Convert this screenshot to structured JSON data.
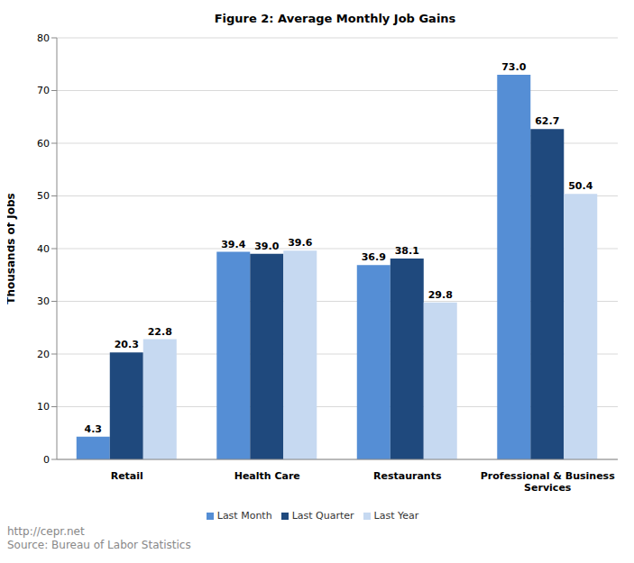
{
  "chart_data": {
    "type": "bar",
    "title": "Figure 2: Average Monthly Job Gains",
    "y_label": "Thousands of Jobs",
    "categories": [
      "Retail",
      "Health Care",
      "Restaurants",
      "Professional & Business Services"
    ],
    "series": [
      {
        "name": "Last Month",
        "color": "#558ed5",
        "values": [
          4.3,
          39.4,
          36.9,
          73.0
        ],
        "value_labels": [
          "4.3",
          "39.4",
          "36.9",
          "73.0"
        ]
      },
      {
        "name": "Last Quarter",
        "color": "#1f497d",
        "values": [
          20.3,
          39.0,
          38.1,
          62.7
        ],
        "value_labels": [
          "20.3",
          "39.0",
          "38.1",
          "62.7"
        ]
      },
      {
        "name": "Last Year",
        "color": "#c6d9f1",
        "values": [
          22.8,
          39.6,
          29.8,
          50.4
        ],
        "value_labels": [
          "22.8",
          "39.6",
          "29.8",
          "50.4"
        ]
      }
    ],
    "ylim": [
      0,
      80
    ],
    "yticks": [
      0,
      10,
      20,
      30,
      40,
      50,
      60,
      70,
      80
    ],
    "grid": true,
    "legend": "bottom",
    "data_labels": true,
    "annotations": [
      "http://cepr.net",
      "Source: Bureau of Labor Statistics"
    ]
  }
}
